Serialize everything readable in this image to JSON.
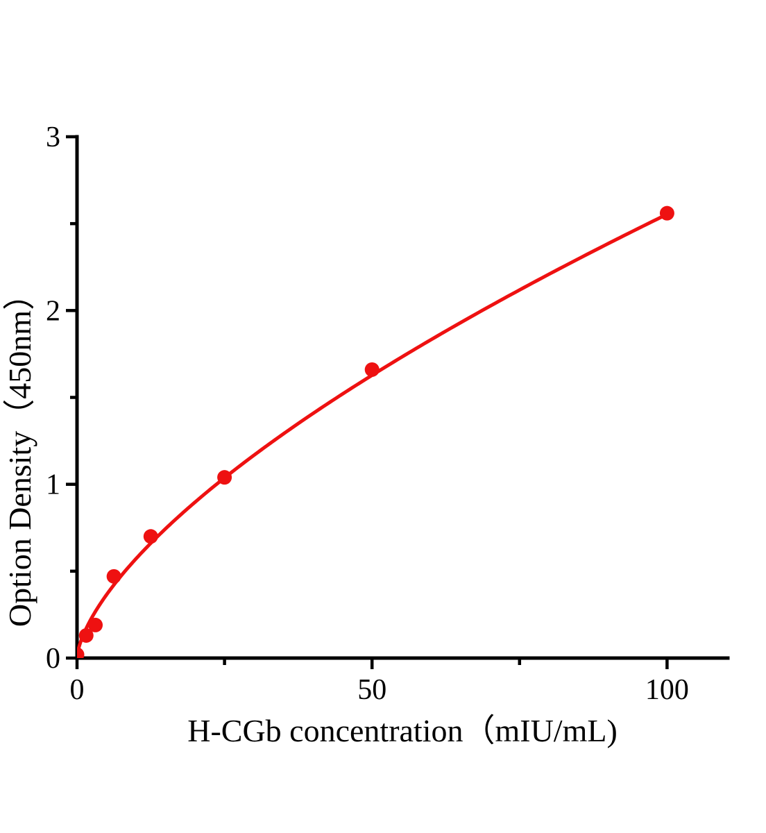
{
  "chart_data": {
    "type": "scatter",
    "title": "",
    "x_title": "H-CGb concentration（mIU/mL)",
    "y_title": "Option Density（450nm）",
    "x_axis": {
      "min": 0,
      "max": 110.3,
      "major_ticks": [
        0,
        50,
        100
      ],
      "major_tick_labels": [
        "0",
        "50",
        "100"
      ],
      "minor_ticks": [
        25,
        75
      ]
    },
    "y_axis": {
      "min": 0,
      "max": 3.0,
      "major_ticks": [
        0,
        1,
        2,
        3
      ],
      "major_tick_labels": [
        "0",
        "1",
        "2",
        "3"
      ],
      "minor_ticks": [
        0.5,
        1.5,
        2.5
      ]
    },
    "points": [
      {
        "x": 0,
        "y": 0.02
      },
      {
        "x": 1.56,
        "y": 0.13
      },
      {
        "x": 3.12,
        "y": 0.19
      },
      {
        "x": 6.25,
        "y": 0.47
      },
      {
        "x": 12.5,
        "y": 0.7
      },
      {
        "x": 25,
        "y": 1.04
      },
      {
        "x": 50,
        "y": 1.66
      },
      {
        "x": 100,
        "y": 2.56
      }
    ],
    "fit_curve": {
      "type": "power",
      "a": 0.128,
      "b": 0.65,
      "x_start": 0,
      "x_end": 100
    },
    "grid": false,
    "legend": false,
    "colors": {
      "series": "#ee1111",
      "axis": "#000000",
      "background": "#ffffff"
    }
  }
}
